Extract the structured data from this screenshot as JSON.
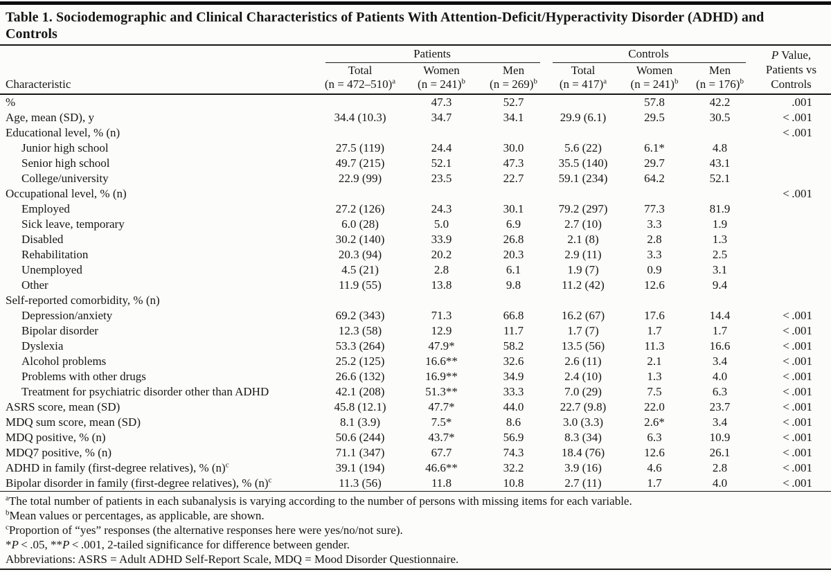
{
  "table": {
    "title_line1": "Table 1. Sociodemographic and Clinical Characteristics of Patients With Attention-Deficit/Hyperactivity Disorder (ADHD) and",
    "title_line2": "Controls",
    "header": {
      "characteristic": "Characteristic",
      "patients": {
        "label": "Patients",
        "cols": [
          {
            "name": "Total",
            "n": "(n = 472–510)",
            "sup": "a"
          },
          {
            "name": "Women",
            "n": "(n = 241)",
            "sup": "b"
          },
          {
            "name": "Men",
            "n": "(n = 269)",
            "sup": "b"
          }
        ]
      },
      "controls": {
        "label": "Controls",
        "cols": [
          {
            "name": "Total",
            "n": "(n = 417)",
            "sup": "a"
          },
          {
            "name": "Women",
            "n": "(n = 241)",
            "sup": "b"
          },
          {
            "name": "Men",
            "n": "(n = 176)",
            "sup": "b"
          }
        ]
      },
      "pvalue": {
        "p": "P",
        "rest": " Value,",
        "line2": "Patients vs",
        "line3": "Controls"
      }
    },
    "rows": [
      {
        "label": "%",
        "indent": false,
        "sup": "",
        "values": [
          "",
          "47.3",
          "52.7",
          "",
          "57.8",
          "42.2"
        ],
        "p": ".001"
      },
      {
        "label": "Age, mean (SD), y",
        "indent": false,
        "sup": "",
        "values": [
          "34.4 (10.3)",
          "34.7",
          "34.1",
          "29.9 (6.1)",
          "29.5",
          "30.5"
        ],
        "p": "< .001"
      },
      {
        "label": "Educational level, % (n)",
        "indent": false,
        "sup": "",
        "values": [
          "",
          "",
          "",
          "",
          "",
          ""
        ],
        "p": "< .001"
      },
      {
        "label": "Junior high school",
        "indent": true,
        "sup": "",
        "values": [
          "27.5 (119)",
          "24.4",
          "30.0",
          "5.6 (22)",
          "6.1*",
          "4.8"
        ],
        "p": ""
      },
      {
        "label": "Senior high school",
        "indent": true,
        "sup": "",
        "values": [
          "49.7 (215)",
          "52.1",
          "47.3",
          "35.5 (140)",
          "29.7",
          "43.1"
        ],
        "p": ""
      },
      {
        "label": "College/university",
        "indent": true,
        "sup": "",
        "values": [
          "22.9 (99)",
          "23.5",
          "22.7",
          "59.1 (234)",
          "64.2",
          "52.1"
        ],
        "p": ""
      },
      {
        "label": "Occupational level, % (n)",
        "indent": false,
        "sup": "",
        "values": [
          "",
          "",
          "",
          "",
          "",
          ""
        ],
        "p": "< .001"
      },
      {
        "label": "Employed",
        "indent": true,
        "sup": "",
        "values": [
          "27.2 (126)",
          "24.3",
          "30.1",
          "79.2 (297)",
          "77.3",
          "81.9"
        ],
        "p": ""
      },
      {
        "label": "Sick leave, temporary",
        "indent": true,
        "sup": "",
        "values": [
          "6.0 (28)",
          "5.0",
          "6.9",
          "2.7 (10)",
          "3.3",
          "1.9"
        ],
        "p": ""
      },
      {
        "label": "Disabled",
        "indent": true,
        "sup": "",
        "values": [
          "30.2 (140)",
          "33.9",
          "26.8",
          "2.1 (8)",
          "2.8",
          "1.3"
        ],
        "p": ""
      },
      {
        "label": "Rehabilitation",
        "indent": true,
        "sup": "",
        "values": [
          "20.3 (94)",
          "20.2",
          "20.3",
          "2.9 (11)",
          "3.3",
          "2.5"
        ],
        "p": ""
      },
      {
        "label": "Unemployed",
        "indent": true,
        "sup": "",
        "values": [
          "4.5 (21)",
          "2.8",
          "6.1",
          "1.9 (7)",
          "0.9",
          "3.1"
        ],
        "p": ""
      },
      {
        "label": "Other",
        "indent": true,
        "sup": "",
        "values": [
          "11.9 (55)",
          "13.8",
          "9.8",
          "11.2 (42)",
          "12.6",
          "9.4"
        ],
        "p": ""
      },
      {
        "label": "Self-reported comorbidity, % (n)",
        "indent": false,
        "sup": "",
        "values": [
          "",
          "",
          "",
          "",
          "",
          ""
        ],
        "p": ""
      },
      {
        "label": "Depression/anxiety",
        "indent": true,
        "sup": "",
        "values": [
          "69.2 (343)",
          "71.3",
          "66.8",
          "16.2 (67)",
          "17.6",
          "14.4"
        ],
        "p": "< .001"
      },
      {
        "label": "Bipolar disorder",
        "indent": true,
        "sup": "",
        "values": [
          "12.3 (58)",
          "12.9",
          "11.7",
          "1.7 (7)",
          "1.7",
          "1.7"
        ],
        "p": "< .001"
      },
      {
        "label": "Dyslexia",
        "indent": true,
        "sup": "",
        "values": [
          "53.3 (264)",
          "47.9*",
          "58.2",
          "13.5 (56)",
          "11.3",
          "16.6"
        ],
        "p": "< .001"
      },
      {
        "label": "Alcohol problems",
        "indent": true,
        "sup": "",
        "values": [
          "25.2 (125)",
          "16.6**",
          "32.6",
          "2.6 (11)",
          "2.1",
          "3.4"
        ],
        "p": "< .001"
      },
      {
        "label": "Problems with other drugs",
        "indent": true,
        "sup": "",
        "values": [
          "26.6 (132)",
          "16.9**",
          "34.9",
          "2.4 (10)",
          "1.3",
          "4.0"
        ],
        "p": "< .001"
      },
      {
        "label": "Treatment for psychiatric disorder other than ADHD",
        "indent": true,
        "sup": "",
        "values": [
          "42.1 (208)",
          "51.3**",
          "33.3",
          "7.0 (29)",
          "7.5",
          "6.3"
        ],
        "p": "< .001"
      },
      {
        "label": "ASRS score, mean (SD)",
        "indent": false,
        "sup": "",
        "values": [
          "45.8 (12.1)",
          "47.7*",
          "44.0",
          "22.7 (9.8)",
          "22.0",
          "23.7"
        ],
        "p": "< .001"
      },
      {
        "label": "MDQ sum score, mean (SD)",
        "indent": false,
        "sup": "",
        "values": [
          "8.1 (3.9)",
          "7.5*",
          "8.6",
          "3.0 (3.3)",
          "2.6*",
          "3.4"
        ],
        "p": "< .001"
      },
      {
        "label": "MDQ positive, % (n)",
        "indent": false,
        "sup": "",
        "values": [
          "50.6 (244)",
          "43.7*",
          "56.9",
          "8.3 (34)",
          "6.3",
          "10.9"
        ],
        "p": "< .001"
      },
      {
        "label": "MDQ7 positive, % (n)",
        "indent": false,
        "sup": "",
        "values": [
          "71.1 (347)",
          "67.7",
          "74.3",
          "18.4 (76)",
          "12.6",
          "26.1"
        ],
        "p": "< .001"
      },
      {
        "label": "ADHD in family (first-degree relatives), % (n)",
        "indent": false,
        "sup": "c",
        "values": [
          "39.1 (194)",
          "46.6**",
          "32.2",
          "3.9 (16)",
          "4.6",
          "2.8"
        ],
        "p": "< .001"
      },
      {
        "label": "Bipolar disorder in family (first-degree relatives), % (n)",
        "indent": false,
        "sup": "c",
        "values": [
          "11.3 (56)",
          "11.8",
          "10.8",
          "2.7 (11)",
          "1.7",
          "4.0"
        ],
        "p": "< .001"
      }
    ]
  },
  "footnotes": [
    {
      "sup": "a",
      "segments": [
        {
          "t": "The total number of patients in each subanalysis is varying according to the number of persons with missing items for each variable."
        }
      ]
    },
    {
      "sup": "b",
      "segments": [
        {
          "t": "Mean values or percentages, as applicable, are shown."
        }
      ]
    },
    {
      "sup": "c",
      "segments": [
        {
          "t": "Proportion of “yes” responses (the alternative responses here were yes/no/not sure)."
        }
      ]
    },
    {
      "sup": "",
      "segments": [
        {
          "t": "*"
        },
        {
          "t": "P",
          "i": true
        },
        {
          "t": " < .05, **"
        },
        {
          "t": "P",
          "i": true
        },
        {
          "t": " < .001, 2-tailed significance for difference between gender."
        }
      ]
    },
    {
      "sup": "",
      "segments": [
        {
          "t": "Abbreviations: ASRS = Adult ADHD Self-Report Scale, MDQ = Mood Disorder Questionnaire."
        }
      ]
    }
  ]
}
